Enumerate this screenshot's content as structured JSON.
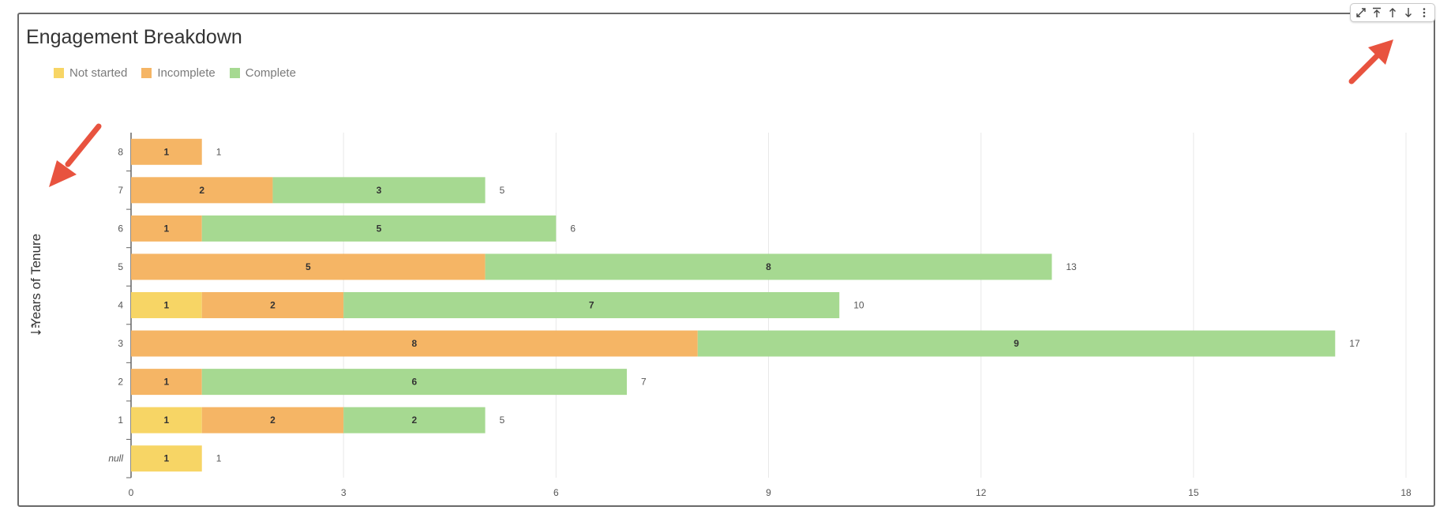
{
  "title": "Engagement Breakdown",
  "toolbar": {
    "expand_icon": "expand-icon",
    "move_top_icon": "move-to-top-icon",
    "move_up_icon": "arrow-up-icon",
    "move_down_icon": "arrow-down-icon",
    "more_icon": "more-vertical-icon"
  },
  "colors": {
    "not_started": "#f7d565",
    "incomplete": "#f5b565",
    "complete": "#a6d991",
    "grid": "#e8e8e8",
    "axis": "#666666",
    "annotation_arrow": "#e8533f"
  },
  "chart_data": {
    "type": "bar",
    "orientation": "horizontal",
    "stacked": true,
    "title": "Engagement Breakdown",
    "ylabel": "Years of Tenure",
    "xlabel": "",
    "categories": [
      "8",
      "7",
      "6",
      "5",
      "4",
      "3",
      "2",
      "1",
      "null"
    ],
    "series": [
      {
        "name": "Not started",
        "color": "#f7d565",
        "values": [
          0,
          0,
          0,
          0,
          1,
          0,
          0,
          1,
          1
        ]
      },
      {
        "name": "Incomplete",
        "color": "#f5b565",
        "values": [
          1,
          2,
          1,
          5,
          2,
          8,
          1,
          2,
          0
        ]
      },
      {
        "name": "Complete",
        "color": "#a6d991",
        "values": [
          0,
          3,
          5,
          8,
          7,
          9,
          6,
          2,
          0
        ]
      }
    ],
    "totals": [
      1,
      5,
      6,
      13,
      10,
      17,
      7,
      5,
      1
    ],
    "xlim": [
      0,
      18
    ],
    "xticks": [
      0,
      3,
      6,
      9,
      12,
      15,
      18
    ],
    "grid": "vertical",
    "legend": "top-left"
  }
}
